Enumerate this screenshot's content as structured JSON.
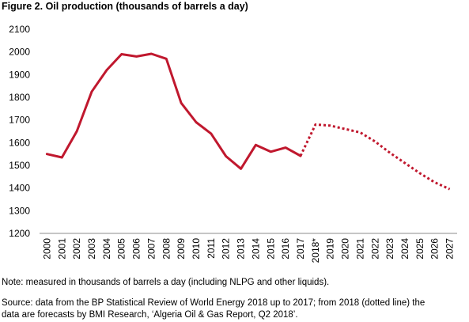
{
  "figure": {
    "title": "Figure 2. Oil production (thousands of barrels a day)",
    "note": "Note: measured in thousands of barrels a day (including NLPG and other liquids).",
    "source_line1": "Source: data from the BP Statistical Review of World Energy 2018 up to 2017; from 2018 (dotted line) the",
    "source_line2": "data are forecasts by BMI Research, ‘Algeria Oil & Gas Report, Q2 2018’."
  },
  "chart_data": {
    "type": "line",
    "title": "Figure 2. Oil production (thousands of barrels a day)",
    "xlabel": "",
    "ylabel": "",
    "ylim": [
      1200,
      2100
    ],
    "yticks": [
      1200,
      1300,
      1400,
      1500,
      1600,
      1700,
      1800,
      1900,
      2000,
      2100
    ],
    "grid": false,
    "legend": "none",
    "color": "#c0182e",
    "categories": [
      "2000",
      "2001",
      "2002",
      "2003",
      "2004",
      "2005",
      "2006",
      "2007",
      "2008",
      "2009",
      "2010",
      "2011",
      "2012",
      "2013",
      "2014",
      "2015",
      "2016",
      "2017",
      "2018*",
      "2019",
      "2020",
      "2021",
      "2022",
      "2023",
      "2024",
      "2025",
      "2026",
      "2027"
    ],
    "series": [
      {
        "style": "solid",
        "values": [
          1550,
          1535,
          1650,
          1825,
          1920,
          1990,
          1980,
          1992,
          1970,
          1775,
          1690,
          1640,
          1540,
          1485,
          1590,
          1560,
          1578,
          1542,
          null,
          null,
          null,
          null,
          null,
          null,
          null,
          null,
          null,
          null
        ]
      },
      {
        "style": "dotted",
        "values": [
          null,
          null,
          null,
          null,
          null,
          null,
          null,
          null,
          null,
          null,
          null,
          null,
          null,
          null,
          null,
          null,
          null,
          1542,
          1680,
          1675,
          1660,
          1645,
          1605,
          1555,
          1510,
          1465,
          1425,
          1395
        ]
      }
    ]
  }
}
